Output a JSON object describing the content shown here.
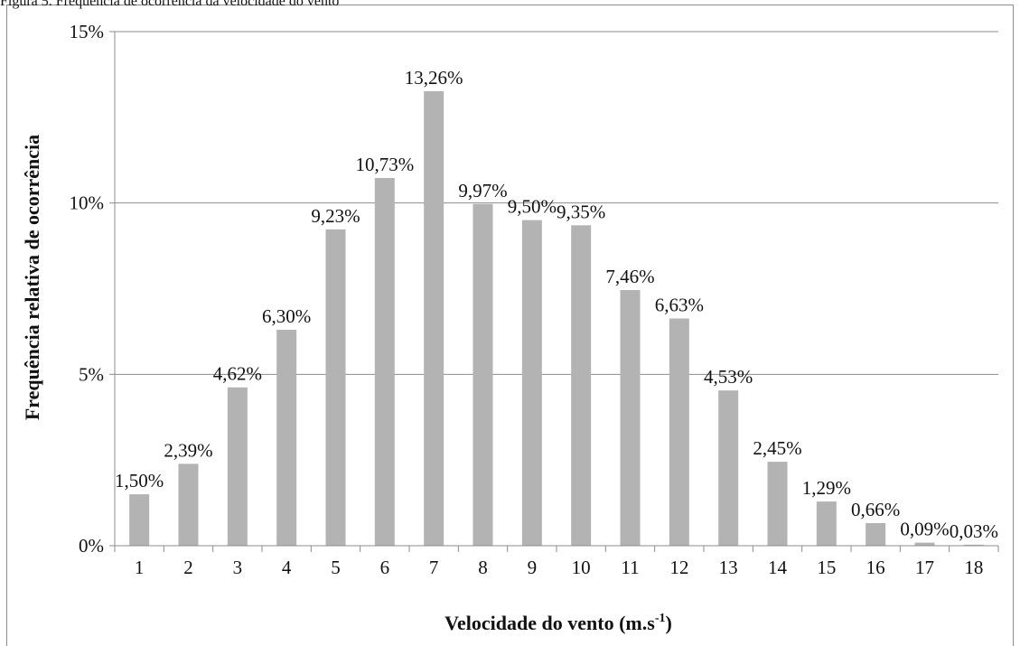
{
  "figure_caption": "Figura 5. Frequência de ocorrência da velocidade do vento",
  "chart_data": {
    "type": "bar",
    "categories": [
      "1",
      "2",
      "3",
      "4",
      "5",
      "6",
      "7",
      "8",
      "9",
      "10",
      "11",
      "12",
      "13",
      "14",
      "15",
      "16",
      "17",
      "18"
    ],
    "values": [
      1.5,
      2.39,
      4.62,
      6.3,
      9.23,
      10.73,
      13.26,
      9.97,
      9.5,
      9.35,
      7.46,
      6.63,
      4.53,
      2.45,
      1.29,
      0.66,
      0.09,
      0.03
    ],
    "data_labels": [
      "1,50%",
      "2,39%",
      "4,62%",
      "6,30%",
      "9,23%",
      "10,73%",
      "13,26%",
      "9,97%",
      "9,50%",
      "9,35%",
      "7,46%",
      "6,63%",
      "4,53%",
      "2,45%",
      "1,29%",
      "0,66%",
      "0,09%",
      "0,03%"
    ],
    "title": "",
    "xlabel_main": "Velocidade do vento (m.s",
    "xlabel_sup": "-1",
    "xlabel_end": ")",
    "ylabel": "Frequência relativa de ocorrência",
    "ylim": [
      0,
      15
    ],
    "yticks": [
      0,
      5,
      10,
      15
    ],
    "ytick_labels": [
      "0%",
      "5%",
      "10%",
      "15%"
    ],
    "grid": true,
    "legend": "none",
    "colors": {
      "bar": "#b3b3b3",
      "grid": "#8c8c8c",
      "axis": "#8c8c8c",
      "text": "#111111"
    }
  }
}
